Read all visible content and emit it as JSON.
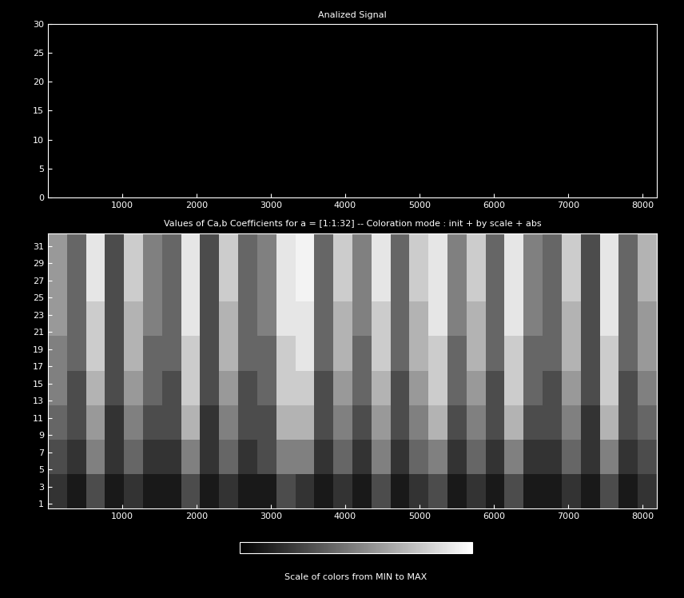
{
  "chart_data": [
    {
      "type": "line",
      "title": "Analized Signal",
      "xlim": [
        0,
        8192
      ],
      "xticks": [
        1000,
        2000,
        3000,
        4000,
        5000,
        6000,
        7000,
        8000
      ],
      "ylim": [
        0,
        30
      ],
      "yticks": [
        0,
        5,
        10,
        15,
        20,
        25,
        30
      ]
    },
    {
      "type": "heatmap",
      "title": "Values of Ca,b Coefficients for a = [1:1:32] -- Coloration mode : init + by scale + abs",
      "xlim": [
        0,
        8192
      ],
      "xticks": [
        1000,
        2000,
        3000,
        4000,
        5000,
        6000,
        7000,
        8000
      ],
      "ylim": [
        0.5,
        32.5
      ],
      "yticks": [
        1,
        3,
        5,
        7,
        9,
        11,
        13,
        15,
        17,
        19,
        21,
        23,
        25,
        27,
        29,
        31
      ],
      "colorbar_label": "Scale of colors from MIN to MAX",
      "color_range": [
        0,
        1
      ],
      "cells": [
        [
          0.2,
          0.1,
          0.3,
          0.1,
          0.2,
          0.1,
          0.1,
          0.3,
          0.1,
          0.2,
          0.1,
          0.1,
          0.3,
          0.2,
          0.1,
          0.2,
          0.1,
          0.3,
          0.1,
          0.2,
          0.3,
          0.1,
          0.2,
          0.1,
          0.3,
          0.1,
          0.1,
          0.2,
          0.1,
          0.3,
          0.1,
          0.2
        ],
        [
          0.3,
          0.2,
          0.5,
          0.2,
          0.4,
          0.2,
          0.2,
          0.5,
          0.2,
          0.4,
          0.2,
          0.3,
          0.5,
          0.5,
          0.2,
          0.4,
          0.2,
          0.5,
          0.2,
          0.4,
          0.5,
          0.2,
          0.4,
          0.2,
          0.5,
          0.2,
          0.2,
          0.4,
          0.2,
          0.5,
          0.2,
          0.3
        ],
        [
          0.4,
          0.3,
          0.6,
          0.2,
          0.5,
          0.3,
          0.3,
          0.7,
          0.2,
          0.5,
          0.3,
          0.3,
          0.7,
          0.7,
          0.3,
          0.5,
          0.3,
          0.6,
          0.3,
          0.5,
          0.7,
          0.3,
          0.5,
          0.3,
          0.7,
          0.3,
          0.3,
          0.5,
          0.2,
          0.7,
          0.3,
          0.4
        ],
        [
          0.5,
          0.3,
          0.7,
          0.3,
          0.6,
          0.4,
          0.3,
          0.8,
          0.3,
          0.6,
          0.3,
          0.4,
          0.8,
          0.8,
          0.3,
          0.6,
          0.4,
          0.7,
          0.3,
          0.6,
          0.8,
          0.4,
          0.6,
          0.3,
          0.8,
          0.4,
          0.3,
          0.6,
          0.3,
          0.8,
          0.3,
          0.5
        ],
        [
          0.5,
          0.4,
          0.8,
          0.3,
          0.7,
          0.4,
          0.4,
          0.8,
          0.3,
          0.7,
          0.4,
          0.4,
          0.8,
          0.9,
          0.4,
          0.7,
          0.4,
          0.8,
          0.4,
          0.7,
          0.8,
          0.4,
          0.7,
          0.4,
          0.8,
          0.4,
          0.4,
          0.7,
          0.3,
          0.8,
          0.4,
          0.6
        ],
        [
          0.6,
          0.4,
          0.8,
          0.3,
          0.7,
          0.5,
          0.4,
          0.9,
          0.3,
          0.7,
          0.4,
          0.5,
          0.9,
          0.9,
          0.4,
          0.7,
          0.5,
          0.8,
          0.4,
          0.7,
          0.9,
          0.5,
          0.7,
          0.4,
          0.9,
          0.5,
          0.4,
          0.7,
          0.3,
          0.9,
          0.4,
          0.6
        ],
        [
          0.6,
          0.4,
          0.9,
          0.3,
          0.8,
          0.5,
          0.4,
          0.9,
          0.3,
          0.8,
          0.4,
          0.5,
          0.9,
          0.95,
          0.4,
          0.8,
          0.5,
          0.9,
          0.4,
          0.8,
          0.9,
          0.5,
          0.8,
          0.4,
          0.9,
          0.5,
          0.4,
          0.8,
          0.3,
          0.9,
          0.4,
          0.7
        ],
        [
          0.6,
          0.4,
          0.9,
          0.3,
          0.8,
          0.5,
          0.4,
          0.9,
          0.3,
          0.8,
          0.4,
          0.5,
          0.9,
          0.95,
          0.4,
          0.8,
          0.5,
          0.9,
          0.4,
          0.8,
          0.9,
          0.5,
          0.8,
          0.4,
          0.9,
          0.5,
          0.4,
          0.8,
          0.3,
          0.9,
          0.4,
          0.7
        ]
      ]
    }
  ]
}
